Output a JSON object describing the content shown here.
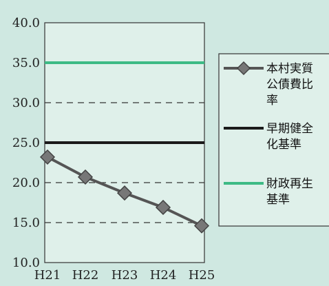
{
  "chart_data": {
    "type": "line",
    "categories": [
      "H21",
      "H22",
      "H23",
      "H24",
      "H25"
    ],
    "ylim": [
      10.0,
      40.0
    ],
    "yticks": [
      "10.0",
      "15.0",
      "20.0",
      "25.0",
      "30.0",
      "35.0",
      "40.0"
    ],
    "grid": "dashed horizontal",
    "legend_position": "right",
    "series": [
      {
        "name": "本村実質公債費比率",
        "label_lines": [
          "本村実質",
          "公債費比",
          "率"
        ],
        "values": [
          23.2,
          20.7,
          18.7,
          16.9,
          14.6
        ],
        "color": "#555555",
        "marker": "diamond"
      },
      {
        "name": "早期健全化基準",
        "label_lines": [
          "早期健全",
          "化基準"
        ],
        "values": [
          25.0,
          25.0,
          25.0,
          25.0,
          25.0
        ],
        "color": "#1a1a1a"
      },
      {
        "name": "財政再生基準",
        "label_lines": [
          "財政再生",
          "基準"
        ],
        "values": [
          35.0,
          35.0,
          35.0,
          35.0,
          35.0
        ],
        "color": "#3dba85"
      }
    ]
  }
}
